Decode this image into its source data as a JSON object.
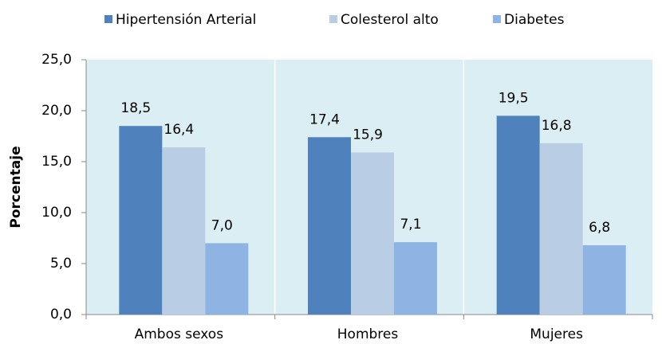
{
  "chart_data": {
    "type": "bar",
    "categories": [
      "Ambos sexos",
      "Hombres",
      "Mujeres"
    ],
    "series": [
      {
        "name": "Hipertensión Arterial",
        "color": "#4f81bd",
        "values": [
          18.5,
          17.4,
          19.5
        ],
        "value_labels": [
          "18,5",
          "17,4",
          "19,5"
        ]
      },
      {
        "name": "Colesterol alto",
        "color": "#b9cde5",
        "values": [
          16.4,
          15.9,
          16.8
        ],
        "value_labels": [
          "16,4",
          "15,9",
          "16,8"
        ]
      },
      {
        "name": "Diabetes",
        "color": "#8eb4e3",
        "values": [
          7.0,
          7.1,
          6.8
        ],
        "value_labels": [
          "7,0",
          "7,1",
          "6,8"
        ]
      }
    ],
    "y_label": "Porcentaje",
    "ylim": [
      0,
      25
    ],
    "yticks": [
      {
        "value": 0,
        "label": "0,0"
      },
      {
        "value": 5,
        "label": "5,0"
      },
      {
        "value": 10,
        "label": "10,0"
      },
      {
        "value": 15,
        "label": "15,0"
      },
      {
        "value": 20,
        "label": "20,0"
      },
      {
        "value": 25,
        "label": "25,0"
      }
    ],
    "legend": "top"
  }
}
